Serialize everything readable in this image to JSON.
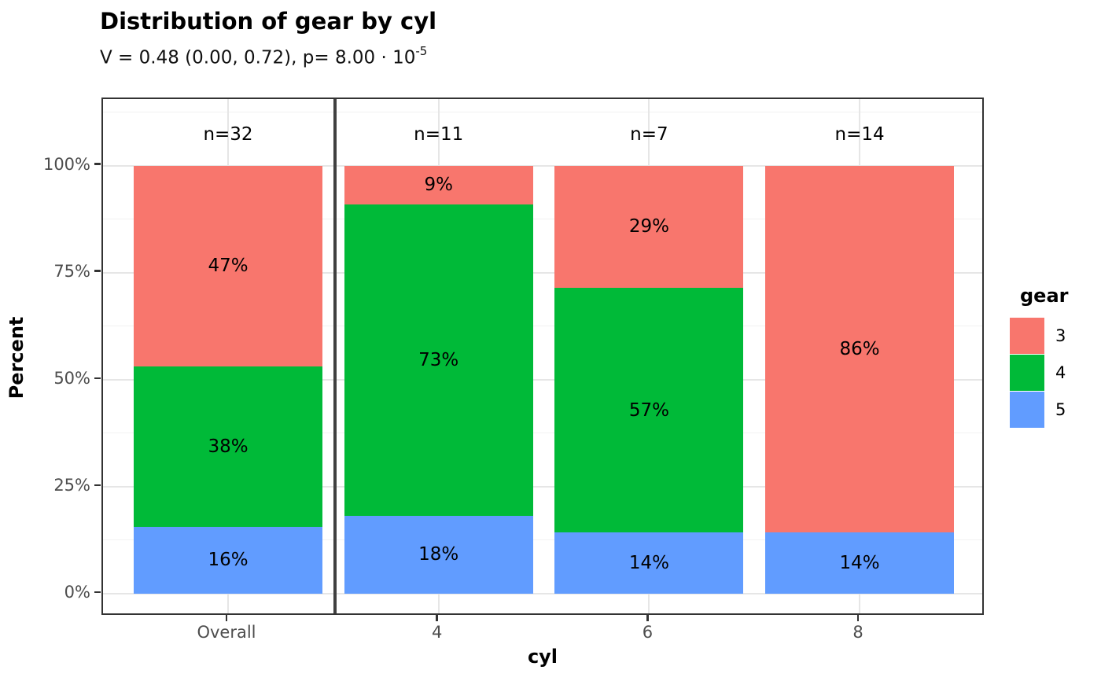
{
  "chart_data": {
    "type": "bar",
    "stacked": true,
    "percent_scale": true,
    "title": "Distribution of gear by cyl",
    "subtitle": {
      "base": "V = 0.48 (0.00, 0.72), p= 8.00 · 10",
      "exponent": "-5"
    },
    "xlabel": "cyl",
    "ylabel": "Percent",
    "categories": [
      "Overall",
      "4",
      "6",
      "8"
    ],
    "sample_sizes": [
      "n=32",
      "n=11",
      "n=7",
      "n=14"
    ],
    "ytick_labels": [
      "0%",
      "25%",
      "50%",
      "75%",
      "100%"
    ],
    "ytick_values": [
      0,
      25,
      50,
      75,
      100
    ],
    "ylim": [
      0,
      100
    ],
    "grid": {
      "major_step": 25,
      "minor_step": 12.5
    },
    "separator_after_category": "Overall",
    "legend": {
      "title": "gear",
      "position": "right",
      "entries": [
        {
          "label": "3",
          "color": "#F8766D"
        },
        {
          "label": "4",
          "color": "#00BA38"
        },
        {
          "label": "5",
          "color": "#619CFF"
        }
      ]
    },
    "series": [
      {
        "name": "3",
        "color": "#F8766D",
        "values": [
          46.875,
          9.091,
          28.571,
          85.714
        ],
        "labels": [
          "47%",
          "9%",
          "29%",
          "86%"
        ]
      },
      {
        "name": "4",
        "color": "#00BA38",
        "values": [
          37.5,
          72.727,
          57.143,
          0
        ],
        "labels": [
          "38%",
          "73%",
          "57%",
          ""
        ]
      },
      {
        "name": "5",
        "color": "#619CFF",
        "values": [
          15.625,
          18.182,
          14.286,
          14.286
        ],
        "labels": [
          "16%",
          "18%",
          "14%",
          "14%"
        ]
      }
    ],
    "colors": {
      "panel_border": "#333333",
      "grid_major": "#e6e6e6",
      "grid_minor": "#f2f2f2",
      "axis_text": "#4d4d4d",
      "separator": "#404040",
      "background": "#ffffff"
    }
  }
}
